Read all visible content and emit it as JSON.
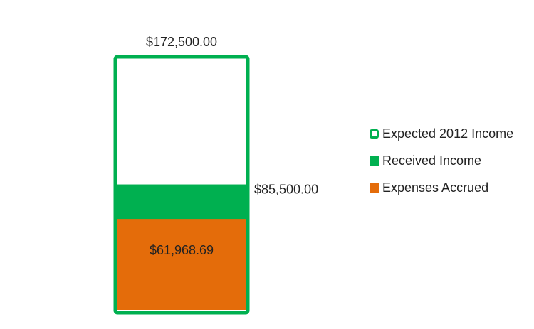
{
  "chart_data": {
    "type": "bar",
    "stacked_overlay": true,
    "categories": [
      ""
    ],
    "series": [
      {
        "name": "Expected 2012 Income",
        "values": [
          172500.0
        ],
        "label": "$172,500.00",
        "style": "outline",
        "color": "#00b050"
      },
      {
        "name": "Received Income",
        "values": [
          85500.0
        ],
        "label": "$85,500.00",
        "style": "fill",
        "color": "#00b050"
      },
      {
        "name": "Expenses Accrued",
        "values": [
          61968.69
        ],
        "label": "$61,968.69",
        "style": "fill",
        "color": "#e46c0a"
      }
    ],
    "title": "",
    "xlabel": "",
    "ylabel": "",
    "ylim": [
      0,
      172500
    ],
    "grid": false,
    "legend_position": "right"
  }
}
